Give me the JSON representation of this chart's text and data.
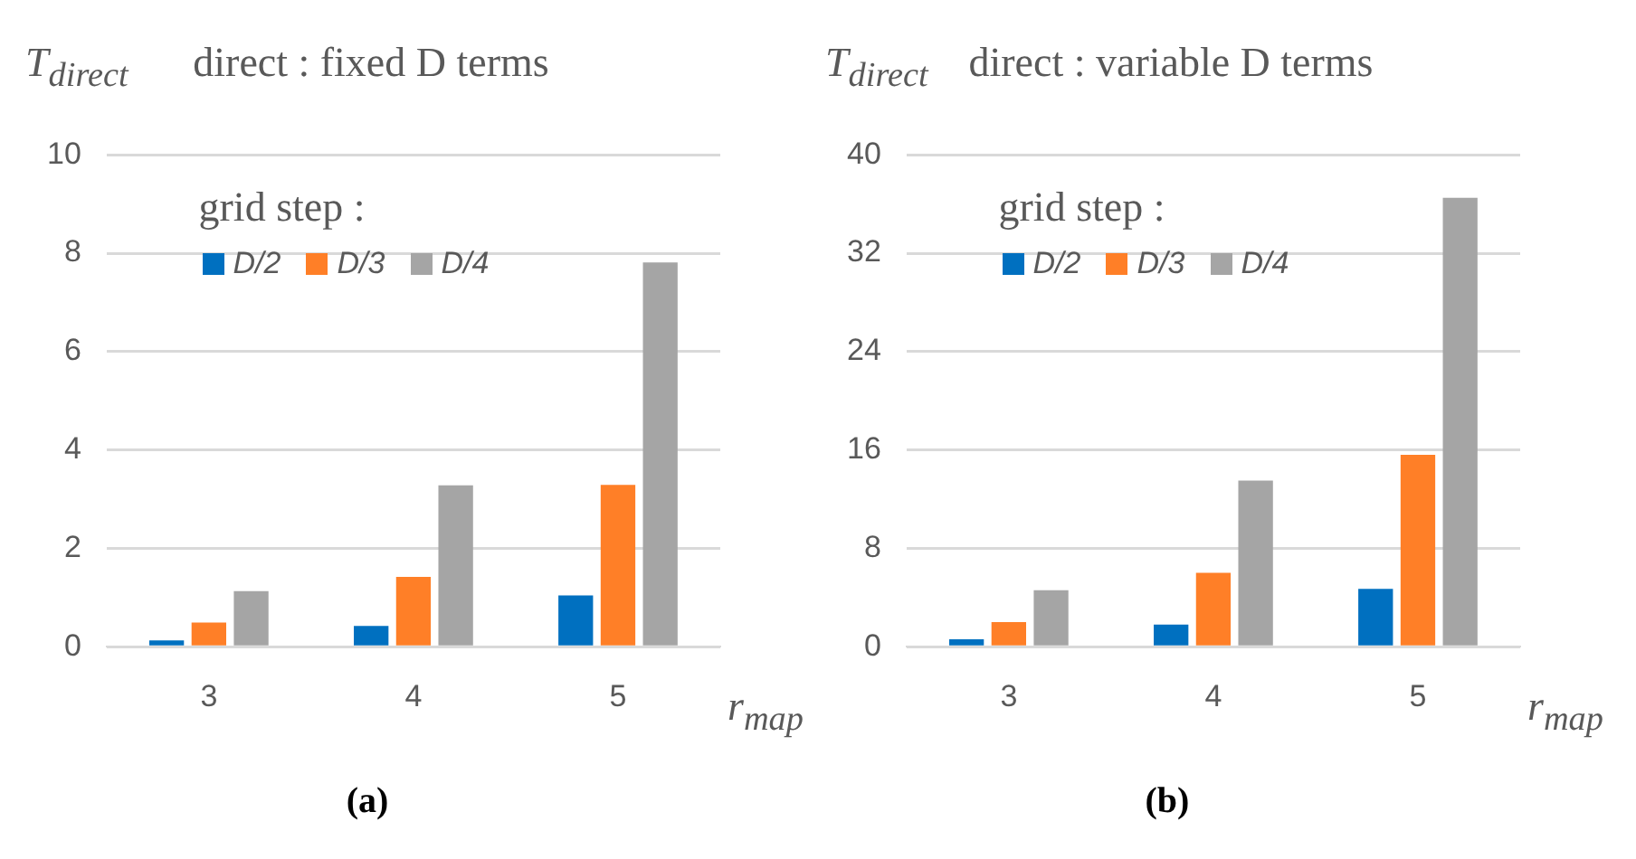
{
  "chart_data": [
    {
      "type": "bar",
      "title": "direct : fixed D terms",
      "ylabel": "T$_{direct}$",
      "xlabel": "r$_{map}$",
      "legend_title": "grid step :",
      "categories": [
        "3",
        "4",
        "5"
      ],
      "series": [
        {
          "name": "D/2",
          "color": "#0070c0",
          "values": [
            0.13,
            0.42,
            1.04
          ]
        },
        {
          "name": "D/3",
          "color": "#ff7f27",
          "values": [
            0.49,
            1.42,
            3.29
          ]
        },
        {
          "name": "D/4",
          "color": "#a5a5a5",
          "values": [
            1.13,
            3.28,
            7.81
          ]
        }
      ],
      "ylim": [
        0,
        10
      ],
      "yticks": [
        0,
        2,
        4,
        6,
        8,
        10
      ],
      "grid": "y",
      "legend": "top",
      "annotations": [
        "(a)"
      ]
    },
    {
      "type": "bar",
      "title": "direct : variable D terms",
      "ylabel": "T$_{direct}$",
      "xlabel": "r$_{map}$",
      "legend_title": "grid step :",
      "categories": [
        "3",
        "4",
        "5"
      ],
      "series": [
        {
          "name": "D/2",
          "color": "#0070c0",
          "values": [
            0.6,
            1.8,
            4.7
          ]
        },
        {
          "name": "D/3",
          "color": "#ff7f27",
          "values": [
            2.0,
            6.0,
            15.6
          ]
        },
        {
          "name": "D/4",
          "color": "#a5a5a5",
          "values": [
            4.6,
            13.5,
            36.5
          ]
        }
      ],
      "ylim": [
        0,
        40
      ],
      "yticks": [
        0,
        8,
        16,
        24,
        32,
        40
      ],
      "grid": "y",
      "legend": "top",
      "annotations": [
        "(b)"
      ]
    }
  ]
}
